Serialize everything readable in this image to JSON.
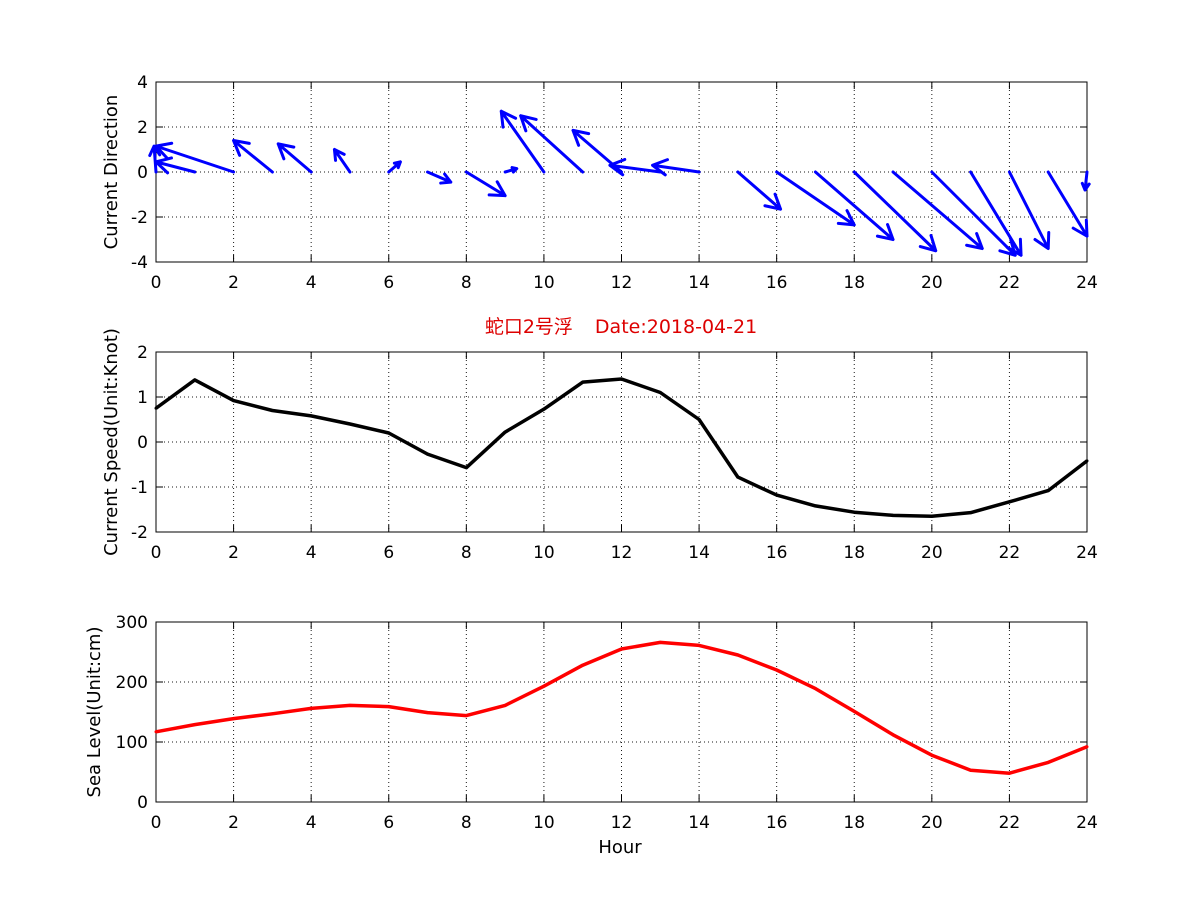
{
  "chart_data": [
    {
      "type": "quiver",
      "ylabel": "Current Direction",
      "xlim": [
        0,
        24
      ],
      "ylim": [
        -4,
        4
      ],
      "x_ticks": [
        0,
        2,
        4,
        6,
        8,
        10,
        12,
        14,
        16,
        18,
        20,
        22,
        24
      ],
      "y_ticks": [
        4,
        2,
        0,
        -2,
        -4
      ],
      "grid": true,
      "color": "#0000ff",
      "vectors": [
        {
          "x": 0,
          "u": -0.05,
          "v": 1.15
        },
        {
          "x": 1,
          "u": -1.0,
          "v": 0.45
        },
        {
          "x": 2,
          "u": -2.0,
          "v": 1.15
        },
        {
          "x": 3,
          "u": -1.0,
          "v": 1.4
        },
        {
          "x": 4,
          "u": -0.85,
          "v": 1.25
        },
        {
          "x": 5,
          "u": -0.4,
          "v": 1.0
        },
        {
          "x": 6,
          "u": 0.3,
          "v": 0.45
        },
        {
          "x": 7,
          "u": 0.6,
          "v": -0.45
        },
        {
          "x": 8,
          "u": 1.0,
          "v": -1.05
        },
        {
          "x": 9,
          "u": 0.3,
          "v": 0.15
        },
        {
          "x": 10,
          "u": -1.1,
          "v": 2.7
        },
        {
          "x": 11,
          "u": -1.6,
          "v": 2.5
        },
        {
          "x": 12,
          "u": -1.25,
          "v": 1.85
        },
        {
          "x": 13,
          "u": -1.3,
          "v": 0.3
        },
        {
          "x": 14,
          "u": -1.2,
          "v": 0.3
        },
        {
          "x": 15,
          "u": 1.1,
          "v": -1.65
        },
        {
          "x": 16,
          "u": 2.0,
          "v": -2.35
        },
        {
          "x": 17,
          "u": 2.0,
          "v": -3.0
        },
        {
          "x": 18,
          "u": 2.1,
          "v": -3.5
        },
        {
          "x": 19,
          "u": 2.3,
          "v": -3.4
        },
        {
          "x": 20,
          "u": 2.15,
          "v": -3.7
        },
        {
          "x": 21,
          "u": 1.3,
          "v": -3.7
        },
        {
          "x": 22,
          "u": 1.0,
          "v": -3.4
        },
        {
          "x": 23,
          "u": 1.0,
          "v": -2.85
        },
        {
          "x": 24,
          "u": -0.05,
          "v": -0.8
        }
      ]
    },
    {
      "type": "line",
      "title_name": "蛇口2号浮",
      "title_date": "Date:2018-04-21",
      "ylabel": "Current Speed(Unit:Knot)",
      "xlim": [
        0,
        24
      ],
      "ylim": [
        -2,
        2
      ],
      "x_ticks": [
        0,
        2,
        4,
        6,
        8,
        10,
        12,
        14,
        16,
        18,
        20,
        22,
        24
      ],
      "y_ticks": [
        2,
        1,
        0,
        -1,
        -2
      ],
      "grid": true,
      "series": [
        {
          "color": "#000000",
          "x": [
            0,
            1,
            2,
            3,
            4,
            5,
            6,
            7,
            8,
            9,
            10,
            11,
            12,
            13,
            14,
            15,
            16,
            17,
            18,
            19,
            20,
            21,
            22,
            23,
            24
          ],
          "values": [
            0.75,
            1.38,
            0.92,
            0.7,
            0.58,
            0.4,
            0.2,
            -0.27,
            -0.57,
            0.22,
            0.73,
            1.33,
            1.4,
            1.1,
            0.5,
            -0.78,
            -1.18,
            -1.42,
            -1.56,
            -1.63,
            -1.65,
            -1.57,
            -1.33,
            -1.08,
            -0.42
          ]
        }
      ]
    },
    {
      "type": "line",
      "xlabel": "Hour",
      "ylabel": "Sea Level(Unit:cm)",
      "xlim": [
        0,
        24
      ],
      "ylim": [
        0,
        300
      ],
      "x_ticks": [
        0,
        2,
        4,
        6,
        8,
        10,
        12,
        14,
        16,
        18,
        20,
        22,
        24
      ],
      "y_ticks": [
        300,
        200,
        100,
        0
      ],
      "grid": true,
      "series": [
        {
          "color": "#ff0000",
          "x": [
            0,
            1,
            2,
            3,
            4,
            5,
            6,
            7,
            8,
            9,
            10,
            11,
            12,
            13,
            14,
            15,
            16,
            17,
            18,
            19,
            20,
            21,
            22,
            23,
            24
          ],
          "values": [
            117,
            129,
            139,
            147,
            156,
            161,
            159,
            149,
            144,
            161,
            193,
            228,
            255,
            266,
            261,
            245,
            220,
            189,
            151,
            112,
            78,
            53,
            48,
            66,
            92
          ]
        }
      ]
    }
  ]
}
